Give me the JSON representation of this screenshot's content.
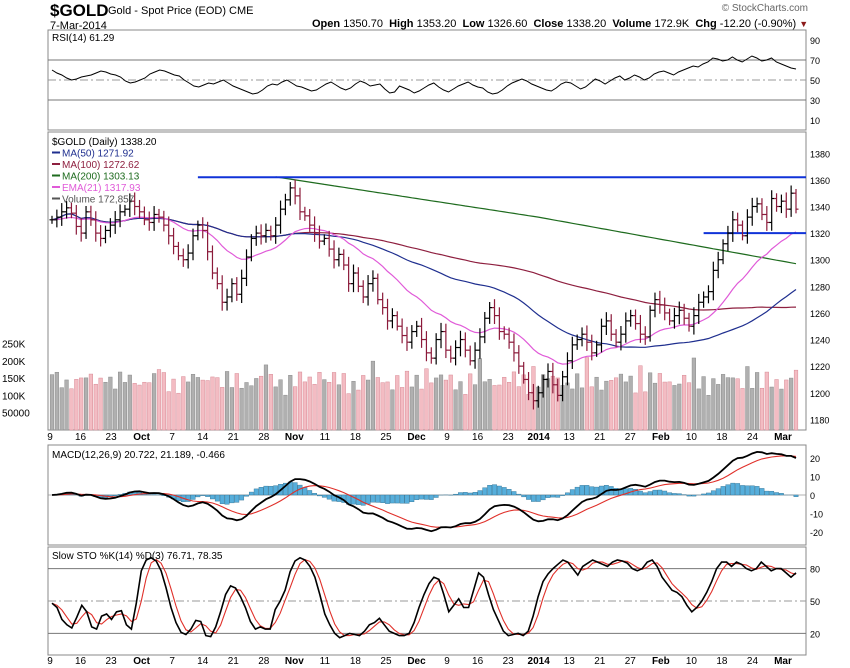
{
  "header": {
    "symbol": "$GOLD",
    "name": "Gold - Spot Price (EOD)",
    "exchange": "CME",
    "date": "7-Mar-2014",
    "watermark": "© StockCharts.com",
    "ohlc": [
      {
        "label": "Open",
        "value": "1350.70"
      },
      {
        "label": "High",
        "value": "1353.20"
      },
      {
        "label": "Low",
        "value": "1326.60"
      },
      {
        "label": "Close",
        "value": "1338.20"
      },
      {
        "label": "Volume",
        "value": "172.9K"
      },
      {
        "label": "Chg",
        "value": "-12.20 (-0.90%)"
      }
    ],
    "chg_marker": "▼"
  },
  "colors": {
    "ma50": "#1f2f8f",
    "ma100": "#8e1f3f",
    "ma200": "#1e6b1e",
    "ema21": "#e05ad8",
    "hline": "#1033d8",
    "vol_up": "#b0b0b0",
    "vol_down": "#f3bcc3",
    "price_down": "#8b1a3a",
    "price_up": "#000000",
    "hist": "#56aedb",
    "macd": "#000000",
    "signal": "#e0302a"
  },
  "chart_data": [
    {
      "name": "rsi",
      "type": "line",
      "legend": "RSI(14) 61.29",
      "y_ticks": [
        10,
        30,
        50,
        70,
        90
      ],
      "ylim": [
        0,
        100
      ],
      "values": [
        60,
        57,
        55,
        52,
        50,
        51,
        53,
        54,
        55,
        57,
        59,
        58,
        56,
        55,
        53,
        49,
        47,
        48,
        50,
        52,
        56,
        58,
        60,
        59,
        57,
        55,
        54,
        50,
        47,
        44,
        43,
        45,
        47,
        46,
        48,
        50,
        47,
        44,
        42,
        40,
        38,
        36,
        37,
        40,
        44,
        46,
        45,
        48,
        50,
        47,
        44,
        43,
        41,
        39,
        40,
        43,
        46,
        48,
        45,
        42,
        40,
        42,
        46,
        49,
        47,
        44,
        45,
        46,
        41,
        37,
        38,
        44,
        42,
        40,
        37,
        39,
        42,
        45,
        47,
        43,
        40,
        38,
        41,
        44,
        46,
        48,
        45,
        43,
        42,
        38,
        36,
        37,
        40,
        44,
        47,
        49,
        51,
        49,
        46,
        44,
        42,
        40,
        39,
        42,
        46,
        48,
        47,
        44,
        41,
        43,
        47,
        51,
        49,
        46,
        49,
        52,
        54,
        50,
        52,
        55,
        53,
        50,
        52,
        56,
        58,
        59,
        57,
        55,
        58,
        60,
        62,
        64,
        63,
        66,
        68,
        72,
        71,
        69,
        70,
        73,
        70,
        68,
        71,
        74,
        72,
        69,
        70,
        72,
        68,
        66,
        64,
        62,
        61
      ]
    },
    {
      "name": "price",
      "type": "ohlc",
      "legend_lines": [
        "$GOLD (Daily) 1338.20",
        "MA(50) 1271.92",
        "MA(100) 1272.62",
        "MA(200) 1303.13",
        "EMA(21) 1317.93",
        "Volume 172,857"
      ],
      "y_ticks": [
        1180,
        1200,
        1220,
        1240,
        1260,
        1280,
        1300,
        1320,
        1340,
        1360,
        1380
      ],
      "ylim": [
        1172,
        1396
      ],
      "volume_ticks": [
        "250K",
        "200K",
        "150K",
        "100K",
        "50000"
      ],
      "x_ticks": [
        "9",
        "16",
        "23",
        "Oct",
        "7",
        "14",
        "21",
        "28",
        "Nov",
        "11",
        "18",
        "25",
        "Dec",
        "9",
        "16",
        "23",
        "2014",
        "13",
        "21",
        "27",
        "Feb",
        "10",
        "18",
        "24",
        "Mar"
      ],
      "resistance_level": 1362,
      "support_level": 1320,
      "close": [
        1330,
        1332,
        1336,
        1339,
        1335,
        1325,
        1320,
        1336,
        1330,
        1320,
        1316,
        1322,
        1326,
        1330,
        1336,
        1338,
        1344,
        1340,
        1336,
        1330,
        1328,
        1334,
        1332,
        1326,
        1318,
        1310,
        1303,
        1300,
        1305,
        1318,
        1326,
        1322,
        1306,
        1290,
        1282,
        1268,
        1272,
        1282,
        1274,
        1286,
        1302,
        1316,
        1320,
        1318,
        1322,
        1318,
        1326,
        1338,
        1345,
        1354,
        1348,
        1336,
        1333,
        1326,
        1320,
        1314,
        1316,
        1308,
        1300,
        1304,
        1296,
        1282,
        1290,
        1280,
        1272,
        1282,
        1286,
        1270,
        1264,
        1254,
        1258,
        1250,
        1243,
        1238,
        1246,
        1250,
        1240,
        1230,
        1226,
        1240,
        1246,
        1232,
        1226,
        1234,
        1240,
        1232,
        1224,
        1232,
        1242,
        1256,
        1264,
        1258,
        1246,
        1244,
        1238,
        1230,
        1220,
        1210,
        1200,
        1194,
        1200,
        1210,
        1216,
        1206,
        1198,
        1212,
        1224,
        1236,
        1240,
        1244,
        1238,
        1230,
        1236,
        1250,
        1254,
        1244,
        1238,
        1244,
        1254,
        1258,
        1252,
        1244,
        1242,
        1262,
        1270,
        1266,
        1260,
        1254,
        1258,
        1262,
        1256,
        1250,
        1258,
        1268,
        1272,
        1276,
        1292,
        1300,
        1312,
        1320,
        1330,
        1326,
        1318,
        1332,
        1340,
        1342,
        1334,
        1328,
        1346,
        1340,
        1344,
        1338,
        1350,
        1338
      ]
    },
    {
      "name": "macd",
      "type": "line",
      "legend": "MACD(12,26,9) 20.722, 21.189, -0.466",
      "y_ticks": [
        -20,
        -10,
        0,
        10,
        20
      ],
      "ylim": [
        -27,
        27
      ]
    },
    {
      "name": "stochastic",
      "type": "line",
      "legend": "Slow STO %K(14) %D(3) 76.71, 78.35",
      "y_ticks": [
        20,
        50,
        80
      ],
      "ylim": [
        0,
        100
      ],
      "k": [
        48,
        44,
        33,
        28,
        25,
        35,
        46,
        40,
        26,
        24,
        36,
        38,
        33,
        40,
        41,
        28,
        24,
        48,
        78,
        88,
        90,
        87,
        78,
        62,
        44,
        30,
        21,
        19,
        24,
        32,
        31,
        18,
        17,
        26,
        40,
        56,
        64,
        62,
        54,
        44,
        31,
        24,
        26,
        24,
        24,
        42,
        50,
        60,
        77,
        87,
        90,
        88,
        82,
        72,
        56,
        38,
        28,
        20,
        16,
        18,
        20,
        19,
        18,
        22,
        28,
        30,
        34,
        28,
        22,
        20,
        18,
        18,
        20,
        30,
        44,
        56,
        66,
        72,
        70,
        56,
        40,
        46,
        52,
        44,
        44,
        60,
        76,
        72,
        56,
        42,
        32,
        22,
        18,
        19,
        20,
        18,
        22,
        36,
        54,
        68,
        75,
        80,
        84,
        88,
        86,
        80,
        74,
        82,
        85,
        88,
        86,
        84,
        82,
        86,
        88,
        87,
        85,
        80,
        78,
        80,
        86,
        88,
        82,
        72,
        66,
        60,
        58,
        54,
        46,
        40,
        44,
        50,
        58,
        68,
        80,
        86,
        86,
        82,
        86,
        84,
        80,
        78,
        80,
        86,
        82,
        78,
        80,
        80,
        76,
        72,
        76
      ]
    }
  ]
}
